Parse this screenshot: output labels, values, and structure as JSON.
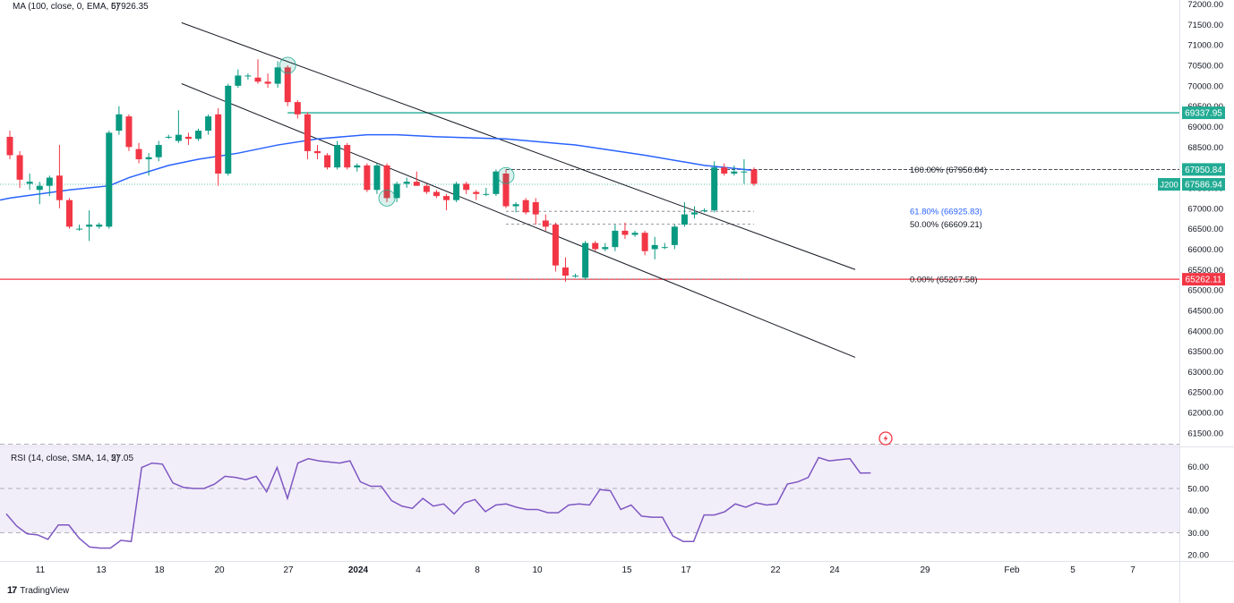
{
  "colors": {
    "up": "#089981",
    "down": "#f23645",
    "ma": "#2962ff",
    "rsi": "#7e57c2",
    "rsi_band": "#ede7f6",
    "resistance": "#22ab94",
    "support": "#f23645",
    "fib": "#787b86",
    "fib_61": "#2962ff",
    "text": "#131722",
    "grid": "#e0e3eb"
  },
  "indicators": {
    "ma_name": "MA (100, close, 0, EMA, 5)",
    "ma_value": "67926.35",
    "rsi_name": "RSI (14, close, SMA, 14, 2)",
    "rsi_value": "57.05"
  },
  "price_axis": {
    "ticks": [
      "72000.00",
      "71500.00",
      "71000.00",
      "70500.00",
      "70000.00",
      "69500.00",
      "69000.00",
      "68500.00",
      "68000.00",
      "67500.00",
      "67000.00",
      "66500.00",
      "66000.00",
      "65500.00",
      "65000.00",
      "64500.00",
      "64000.00",
      "63500.00",
      "63000.00",
      "62500.00",
      "62000.00",
      "61500.00"
    ],
    "price_labels": [
      {
        "text": "69337.95",
        "value": 69337.95,
        "color": "#22ab94"
      },
      {
        "text": "67950.84",
        "value": 67950.84,
        "color": "#22ab94"
      },
      {
        "text": "67586.94",
        "value": 67586.94,
        "color": "#22ab94"
      },
      {
        "text": "65262.11",
        "value": 65262.11,
        "color": "#f23645"
      }
    ],
    "symbol_tag": "J200"
  },
  "rsi_axis": {
    "ticks": [
      "60.00",
      "50.00",
      "40.00",
      "30.00",
      "20.00"
    ]
  },
  "time_axis": {
    "labels": [
      "11",
      "13",
      "18",
      "20",
      "27",
      "2024",
      "4",
      "8",
      "10",
      "15",
      "17",
      "22",
      "24",
      "29",
      "Feb",
      "5",
      "7"
    ]
  },
  "fibonacci": [
    {
      "text": "100.00% (67950.84)",
      "value": 67950.84,
      "color": "#131722"
    },
    {
      "text": "61.80% (66925.83)",
      "value": 66925.83,
      "color": "#2962ff"
    },
    {
      "text": "50.00% (66609.21)",
      "value": 66609.21,
      "color": "#131722"
    },
    {
      "text": "0.00% (65267.58)",
      "value": 65267.58,
      "color": "#131722"
    }
  ],
  "branding": {
    "name": "TradingView",
    "mark": "17"
  },
  "chart_data": {
    "type": "candlestick",
    "title": "",
    "series": [
      {
        "name": "price",
        "values": [
          {
            "x": "2023-12-08",
            "o": 68750,
            "h": 68900,
            "l": 68200,
            "c": 68300
          },
          {
            "x": "2023-12-09",
            "o": 68300,
            "h": 68400,
            "l": 67500,
            "c": 67700
          },
          {
            "x": "2023-12-10",
            "o": 67600,
            "h": 67850,
            "l": 67450,
            "c": 67650
          },
          {
            "x": "2023-12-11",
            "o": 67450,
            "h": 67650,
            "l": 67100,
            "c": 67550
          },
          {
            "x": "2023-12-12",
            "o": 67550,
            "h": 67800,
            "l": 67300,
            "c": 67750
          },
          {
            "x": "2023-12-13",
            "o": 67800,
            "h": 68550,
            "l": 67000,
            "c": 67200
          },
          {
            "x": "2023-12-14",
            "o": 67200,
            "h": 67250,
            "l": 66500,
            "c": 66550
          },
          {
            "x": "2023-12-15",
            "o": 66500,
            "h": 66600,
            "l": 66450,
            "c": 66500
          },
          {
            "x": "2023-12-16",
            "o": 66550,
            "h": 66950,
            "l": 66200,
            "c": 66600
          },
          {
            "x": "2023-12-17",
            "o": 66550,
            "h": 66650,
            "l": 66500,
            "c": 66600
          },
          {
            "x": "2023-12-18",
            "o": 66550,
            "h": 68900,
            "l": 66500,
            "c": 68850
          },
          {
            "x": "2023-12-19",
            "o": 68900,
            "h": 69500,
            "l": 68800,
            "c": 69300
          },
          {
            "x": "2023-12-20",
            "o": 69250,
            "h": 69300,
            "l": 68400,
            "c": 68500
          },
          {
            "x": "2023-12-21",
            "o": 68450,
            "h": 68600,
            "l": 68100,
            "c": 68200
          },
          {
            "x": "2023-12-22",
            "o": 68200,
            "h": 68350,
            "l": 67800,
            "c": 68250
          },
          {
            "x": "2023-12-23",
            "o": 68250,
            "h": 68650,
            "l": 68150,
            "c": 68550
          },
          {
            "x": "2023-12-24",
            "o": 68750,
            "h": 68800,
            "l": 68700,
            "c": 68750
          },
          {
            "x": "2023-12-25",
            "o": 68650,
            "h": 69400,
            "l": 68600,
            "c": 68800
          },
          {
            "x": "2023-12-26",
            "o": 68750,
            "h": 68850,
            "l": 68550,
            "c": 68700
          },
          {
            "x": "2023-12-27",
            "o": 68700,
            "h": 68950,
            "l": 68650,
            "c": 68900
          },
          {
            "x": "2023-12-28",
            "o": 68900,
            "h": 69300,
            "l": 68800,
            "c": 69250
          },
          {
            "x": "2023-12-29",
            "o": 69300,
            "h": 69450,
            "l": 67550,
            "c": 67850
          },
          {
            "x": "2023-12-30",
            "o": 67850,
            "h": 70050,
            "l": 67800,
            "c": 70000
          },
          {
            "x": "2023-12-31",
            "o": 70000,
            "h": 70400,
            "l": 69950,
            "c": 70250
          },
          {
            "x": "2024-01-01",
            "o": 70250,
            "h": 70300,
            "l": 70150,
            "c": 70250
          },
          {
            "x": "2024-01-02",
            "o": 70200,
            "h": 70650,
            "l": 70050,
            "c": 70100
          },
          {
            "x": "2024-01-03",
            "o": 70100,
            "h": 70300,
            "l": 69950,
            "c": 70050
          },
          {
            "x": "2024-01-04",
            "o": 70050,
            "h": 70600,
            "l": 69950,
            "c": 70450
          },
          {
            "x": "2024-01-05",
            "o": 70450,
            "h": 70500,
            "l": 69500,
            "c": 69600
          },
          {
            "x": "2024-01-06",
            "o": 69600,
            "h": 69650,
            "l": 69200,
            "c": 69300
          },
          {
            "x": "2024-01-07",
            "o": 69300,
            "h": 69350,
            "l": 68200,
            "c": 68400
          },
          {
            "x": "2024-01-08",
            "o": 68400,
            "h": 68550,
            "l": 68200,
            "c": 68350
          },
          {
            "x": "2024-01-09",
            "o": 68300,
            "h": 68350,
            "l": 67950,
            "c": 68000
          },
          {
            "x": "2024-01-10",
            "o": 68000,
            "h": 68650,
            "l": 67950,
            "c": 68550
          },
          {
            "x": "2024-01-11",
            "o": 68550,
            "h": 68600,
            "l": 67950,
            "c": 68000
          },
          {
            "x": "2024-01-12",
            "o": 68000,
            "h": 68100,
            "l": 67900,
            "c": 68050
          },
          {
            "x": "2024-01-13",
            "o": 68050,
            "h": 68100,
            "l": 67400,
            "c": 67450
          },
          {
            "x": "2024-01-14",
            "o": 67450,
            "h": 68100,
            "l": 67350,
            "c": 68050
          },
          {
            "x": "2024-01-15",
            "o": 68050,
            "h": 68100,
            "l": 67150,
            "c": 67250
          },
          {
            "x": "2024-01-16",
            "o": 67250,
            "h": 67650,
            "l": 67150,
            "c": 67600
          },
          {
            "x": "2024-01-17",
            "o": 67600,
            "h": 67750,
            "l": 67500,
            "c": 67650
          },
          {
            "x": "2024-01-18",
            "o": 67650,
            "h": 67900,
            "l": 67550,
            "c": 67550
          },
          {
            "x": "2024-01-19",
            "o": 67550,
            "h": 67600,
            "l": 67350,
            "c": 67400
          },
          {
            "x": "2024-01-20",
            "o": 67400,
            "h": 67450,
            "l": 67250,
            "c": 67300
          },
          {
            "x": "2024-01-21",
            "o": 67300,
            "h": 67350,
            "l": 66950,
            "c": 67200
          },
          {
            "x": "2024-01-22",
            "o": 67200,
            "h": 67650,
            "l": 67150,
            "c": 67600
          },
          {
            "x": "2024-01-23",
            "o": 67600,
            "h": 67650,
            "l": 67350,
            "c": 67450
          },
          {
            "x": "2024-01-24",
            "o": 67400,
            "h": 67450,
            "l": 67200,
            "c": 67350
          },
          {
            "x": "2024-01-25",
            "o": 67350,
            "h": 67500,
            "l": 67300,
            "c": 67350
          },
          {
            "x": "2024-01-26",
            "o": 67350,
            "h": 67950,
            "l": 67300,
            "c": 67900
          },
          {
            "x": "2024-01-27",
            "o": 67850,
            "h": 67950,
            "l": 67000,
            "c": 67050
          },
          {
            "x": "2024-01-28",
            "o": 67050,
            "h": 67150,
            "l": 66900,
            "c": 67100
          },
          {
            "x": "2024-01-29",
            "o": 67200,
            "h": 67250,
            "l": 66850,
            "c": 66900
          },
          {
            "x": "2024-01-30",
            "o": 67150,
            "h": 67250,
            "l": 66600,
            "c": 66850
          },
          {
            "x": "2024-01-31",
            "o": 66700,
            "h": 66850,
            "l": 66450,
            "c": 66550
          },
          {
            "x": "2024-02-01",
            "o": 66600,
            "h": 66650,
            "l": 65450,
            "c": 65600
          },
          {
            "x": "2024-02-02",
            "o": 65550,
            "h": 65800,
            "l": 65200,
            "c": 65350
          },
          {
            "x": "2024-02-03",
            "o": 65350,
            "h": 65400,
            "l": 65300,
            "c": 65350
          },
          {
            "x": "2024-02-04",
            "o": 65300,
            "h": 66200,
            "l": 65250,
            "c": 66150
          },
          {
            "x": "2024-02-05",
            "o": 66150,
            "h": 66200,
            "l": 65950,
            "c": 66000
          },
          {
            "x": "2024-02-06",
            "o": 66000,
            "h": 66150,
            "l": 65950,
            "c": 66050
          },
          {
            "x": "2024-02-07",
            "o": 66050,
            "h": 66600,
            "l": 65950,
            "c": 66450
          },
          {
            "x": "2024-02-08",
            "o": 66450,
            "h": 66650,
            "l": 66250,
            "c": 66350
          },
          {
            "x": "2024-02-09",
            "o": 66350,
            "h": 66450,
            "l": 66300,
            "c": 66400
          },
          {
            "x": "2024-02-10",
            "o": 66400,
            "h": 66450,
            "l": 65850,
            "c": 65950
          },
          {
            "x": "2024-02-11",
            "o": 66000,
            "h": 66300,
            "l": 65750,
            "c": 66100
          },
          {
            "x": "2024-02-12",
            "o": 66050,
            "h": 66150,
            "l": 66000,
            "c": 66050
          },
          {
            "x": "2024-02-13",
            "o": 66100,
            "h": 66600,
            "l": 66000,
            "c": 66550
          },
          {
            "x": "2024-02-14",
            "o": 66600,
            "h": 67150,
            "l": 66550,
            "c": 66850
          },
          {
            "x": "2024-02-15",
            "o": 66850,
            "h": 67050,
            "l": 66750,
            "c": 66900
          },
          {
            "x": "2024-02-16",
            "o": 66950,
            "h": 67000,
            "l": 66900,
            "c": 66950
          },
          {
            "x": "2024-02-17",
            "o": 66950,
            "h": 68150,
            "l": 66900,
            "c": 68000
          },
          {
            "x": "2024-02-18",
            "o": 68000,
            "h": 68100,
            "l": 67800,
            "c": 67850
          },
          {
            "x": "2024-02-19",
            "o": 67850,
            "h": 68050,
            "l": 67800,
            "c": 67900
          },
          {
            "x": "2024-02-20",
            "o": 67900,
            "h": 68200,
            "l": 67600,
            "c": 67900
          },
          {
            "x": "2024-02-21",
            "o": 67950,
            "h": 68000,
            "l": 67550,
            "c": 67600
          }
        ]
      },
      {
        "name": "MA (100, close, 0, EMA, 5)",
        "values": [
          {
            "x": "2023-12-08",
            "y": 67250
          },
          {
            "x": "2023-12-14",
            "y": 67450
          },
          {
            "x": "2023-12-18",
            "y": 67550
          },
          {
            "x": "2023-12-20",
            "y": 67750
          },
          {
            "x": "2023-12-24",
            "y": 68050
          },
          {
            "x": "2023-12-27",
            "y": 68200
          },
          {
            "x": "2023-12-31",
            "y": 68350
          },
          {
            "x": "2024-01-04",
            "y": 68550
          },
          {
            "x": "2024-01-08",
            "y": 68700
          },
          {
            "x": "2024-01-13",
            "y": 68800
          },
          {
            "x": "2024-01-16",
            "y": 68800
          },
          {
            "x": "2024-01-20",
            "y": 68750
          },
          {
            "x": "2024-01-27",
            "y": 68700
          },
          {
            "x": "2024-02-03",
            "y": 68550
          },
          {
            "x": "2024-02-10",
            "y": 68300
          },
          {
            "x": "2024-02-16",
            "y": 68050
          },
          {
            "x": "2024-02-21",
            "y": 67926.35
          }
        ]
      },
      {
        "name": "RSI (14, close, SMA, 14, 2)",
        "values": [
          38.5,
          33,
          29.5,
          29,
          27,
          33.5,
          33.5,
          27.5,
          23.5,
          23,
          23,
          26.5,
          26,
          59.5,
          61.5,
          61,
          52.5,
          50.5,
          50,
          50,
          52,
          55.5,
          55,
          54,
          55.5,
          48.5,
          59.5,
          45.5,
          61.5,
          63.5,
          62.5,
          62,
          61.5,
          62.5,
          53,
          51,
          51,
          44.5,
          42,
          41,
          45.5,
          42,
          43,
          38.5,
          43.5,
          45,
          39.5,
          42.5,
          43,
          41.5,
          40.5,
          40.5,
          39,
          39,
          42.5,
          43,
          42.5,
          49.5,
          49,
          40.5,
          42.5,
          37.5,
          37,
          37,
          28.5,
          26,
          26,
          38,
          38,
          39.5,
          43,
          41.5,
          43.5,
          42.5,
          43,
          52,
          53,
          55,
          64,
          62.5,
          63,
          63.5,
          57,
          57.05
        ]
      }
    ],
    "rsi_bands": [
      70,
      50,
      30
    ],
    "ylim": [
      61300,
      72100
    ],
    "rsi_ylim": [
      18,
      67
    ],
    "log_scale": false,
    "grid": false,
    "channel": {
      "upper": [
        {
          "x": "2023-12-30",
          "y": 71150
        },
        {
          "x": "2024-02-21",
          "y": 65500
        }
      ],
      "lower": [
        {
          "x": "2023-12-30",
          "y": 69000
        },
        {
          "x": "2024-02-21",
          "y": 63350
        }
      ]
    },
    "horizontal_lines": [
      {
        "value": 69337.95,
        "color": "#22ab94"
      },
      {
        "value": 65262.11,
        "color": "#f23645"
      }
    ],
    "markers": [
      {
        "x": "2024-01-05",
        "y": 70500
      },
      {
        "x": "2024-01-15",
        "y": 67250
      },
      {
        "x": "2024-01-27",
        "y": 67800
      }
    ]
  }
}
